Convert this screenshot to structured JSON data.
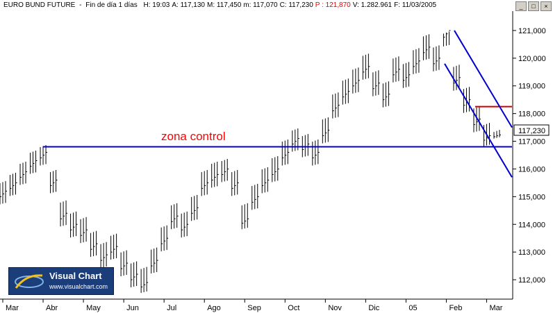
{
  "header": {
    "instrument": "EURO BUND FUTURE",
    "period": "Fin de día 1 días",
    "fields": [
      {
        "key": "H:",
        "value": "19:03"
      },
      {
        "key": "A:",
        "value": "117,130"
      },
      {
        "key": "M:",
        "value": "117,450"
      },
      {
        "key": "m:",
        "value": "117,070"
      },
      {
        "key": "C:",
        "value": "117,230"
      },
      {
        "key": "P :",
        "value": "121,870"
      },
      {
        "key": "V:",
        "value": "1.282.961"
      },
      {
        "key": "F:",
        "value": "11/03/2005"
      }
    ]
  },
  "window_buttons": [
    "_",
    "□",
    "×"
  ],
  "logo": {
    "title": "Visual Chart",
    "url": "www.visualchart.com"
  },
  "colors": {
    "bars": "#000000",
    "support_line": "#0000cc",
    "channel": "#0000cc",
    "resistance": "#cc0000",
    "annotation": "#ff0000"
  },
  "chart_data": {
    "type": "ohlc",
    "annotation": "zona control",
    "current_price_label": "117,230",
    "y_ticks": [
      "121,000",
      "120,000",
      "119,000",
      "118,000",
      "117,000",
      "116,000",
      "115,000",
      "114,000",
      "113,000",
      "112,000"
    ],
    "x_ticks": [
      "Mar",
      "Abr",
      "May",
      "Jun",
      "Jul",
      "Ago",
      "Sep",
      "Oct",
      "Nov",
      "Dic",
      "05",
      "Feb",
      "Mar"
    ],
    "ylim": [
      111.3,
      121.7
    ],
    "x": [
      "Mar",
      "",
      "",
      "",
      "Abr",
      "",
      "",
      "",
      "May",
      "",
      "",
      "",
      "Jun",
      "",
      "",
      "",
      "Jul",
      "",
      "",
      "",
      "Ago",
      "",
      "",
      "",
      "Sep",
      "",
      "",
      "",
      "Oct",
      "",
      "",
      "",
      "Nov",
      "",
      "",
      "",
      "Dic",
      "",
      "",
      "",
      "05",
      "",
      "",
      "",
      "Feb",
      "",
      "",
      "",
      "Mar",
      ""
    ],
    "close": [
      115.2,
      115.5,
      115.9,
      116.3,
      116.6,
      115.6,
      114.4,
      114.0,
      113.8,
      113.3,
      112.9,
      113.2,
      112.6,
      112.2,
      111.9,
      112.7,
      113.5,
      114.3,
      114.0,
      114.6,
      115.5,
      115.8,
      116.0,
      115.5,
      114.2,
      115.0,
      115.6,
      116.0,
      116.6,
      117.1,
      116.9,
      116.6,
      117.4,
      118.3,
      118.8,
      119.2,
      119.7,
      119.1,
      118.7,
      119.6,
      119.4,
      119.9,
      120.4,
      120.0,
      121.0,
      119.3,
      118.5,
      117.8,
      117.2,
      117.23
    ],
    "high": [
      115.6,
      115.9,
      116.3,
      116.7,
      116.9,
      116.0,
      114.9,
      114.5,
      114.3,
      113.8,
      113.4,
      113.7,
      113.1,
      112.7,
      112.5,
      113.2,
      114.0,
      114.8,
      114.5,
      115.1,
      116.0,
      116.3,
      116.4,
      116.0,
      114.8,
      115.5,
      116.1,
      116.5,
      117.1,
      117.5,
      117.3,
      117.1,
      117.9,
      118.8,
      119.3,
      119.7,
      120.2,
      119.6,
      119.2,
      120.1,
      119.9,
      120.4,
      120.9,
      120.5,
      121.0,
      119.8,
      119.0,
      118.3,
      117.7,
      117.45
    ],
    "low": [
      114.7,
      115.0,
      115.4,
      115.8,
      116.1,
      115.1,
      113.9,
      113.5,
      113.3,
      112.8,
      112.4,
      112.7,
      112.1,
      111.7,
      111.5,
      112.2,
      113.0,
      113.8,
      113.5,
      114.1,
      115.0,
      115.3,
      115.5,
      115.0,
      113.8,
      114.5,
      115.1,
      115.5,
      116.1,
      116.6,
      116.4,
      116.1,
      116.9,
      117.8,
      118.3,
      118.7,
      119.2,
      118.6,
      118.2,
      119.1,
      118.9,
      119.4,
      119.9,
      119.5,
      120.4,
      118.8,
      118.0,
      117.3,
      116.8,
      117.07
    ],
    "support_line": {
      "price": 116.8,
      "from": "Mar",
      "to": "Mar"
    },
    "resistance_line": {
      "price": 118.25,
      "from": "Feb",
      "to": "Mar"
    },
    "channel_upper": {
      "start_price": 121.0,
      "end_price": 117.5
    },
    "channel_lower": {
      "start_price": 119.8,
      "end_price": 115.7
    }
  }
}
